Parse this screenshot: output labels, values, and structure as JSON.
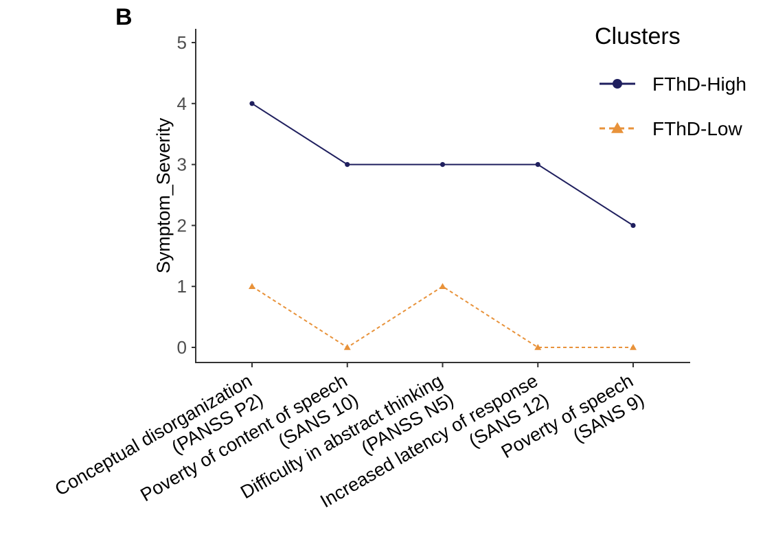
{
  "panel_label": "B",
  "chart_data": {
    "type": "line",
    "categories": [
      [
        "Conceptual disorganization",
        "(PANSS P2)"
      ],
      [
        "Poverty of content of speech",
        "(SANS 10)"
      ],
      [
        "Difficulty in abstract thinking",
        "(PANSS N5)"
      ],
      [
        "Increased latency of response",
        "(SANS 12)"
      ],
      [
        "Poverty of speech",
        "(SANS 9)"
      ]
    ],
    "series": [
      {
        "name": "FThD-High",
        "values": [
          4,
          3,
          3,
          3,
          2
        ],
        "color": "#1f1f5e",
        "marker": "circle",
        "linestyle": "solid"
      },
      {
        "name": "FThD-Low",
        "values": [
          1,
          0,
          1,
          0,
          0
        ],
        "color": "#e8923a",
        "marker": "triangle",
        "linestyle": "dashed"
      }
    ],
    "xlabel": "",
    "ylabel": "Symptom_Severity",
    "ylim": [
      0,
      5
    ],
    "yticks": [
      0,
      1,
      2,
      3,
      4,
      5
    ],
    "legend": {
      "title": "Clusters",
      "position": "top-right"
    },
    "grid": false
  }
}
